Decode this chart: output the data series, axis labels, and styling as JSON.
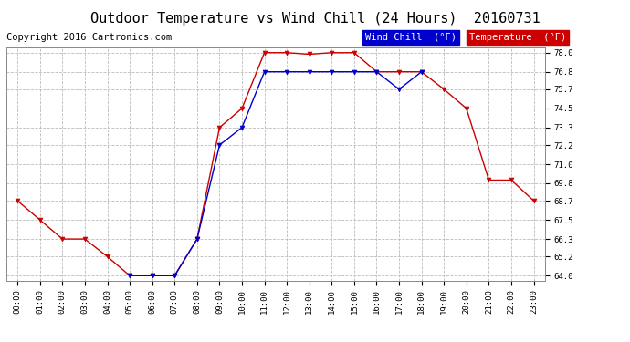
{
  "title": "Outdoor Temperature vs Wind Chill (24 Hours)  20160731",
  "copyright": "Copyright 2016 Cartronics.com",
  "legend_wind_chill": "Wind Chill  (°F)",
  "legend_temperature": "Temperature  (°F)",
  "hours": [
    "00:00",
    "01:00",
    "02:00",
    "03:00",
    "04:00",
    "05:00",
    "06:00",
    "07:00",
    "08:00",
    "09:00",
    "10:00",
    "11:00",
    "12:00",
    "13:00",
    "14:00",
    "15:00",
    "16:00",
    "17:00",
    "18:00",
    "19:00",
    "20:00",
    "21:00",
    "22:00",
    "23:00"
  ],
  "temperature": [
    68.7,
    67.5,
    66.3,
    66.3,
    65.2,
    64.0,
    64.0,
    64.0,
    66.3,
    73.3,
    74.5,
    78.0,
    78.0,
    77.9,
    78.0,
    78.0,
    76.8,
    76.8,
    76.8,
    75.7,
    74.5,
    70.0,
    70.0,
    68.7
  ],
  "wind_chill": [
    null,
    null,
    null,
    null,
    null,
    64.0,
    64.0,
    64.0,
    66.3,
    72.2,
    73.3,
    76.8,
    76.8,
    76.8,
    76.8,
    76.8,
    76.8,
    75.7,
    76.8,
    null,
    null,
    null,
    null,
    null
  ],
  "ylim_min": 64.0,
  "ylim_max": 78.0,
  "yticks": [
    64.0,
    65.2,
    66.3,
    67.5,
    68.7,
    69.8,
    71.0,
    72.2,
    73.3,
    74.5,
    75.7,
    76.8,
    78.0
  ],
  "temp_color": "#cc0000",
  "wind_color": "#0000cc",
  "bg_color": "#ffffff",
  "grid_color": "#bbbbbb",
  "title_fontsize": 11,
  "legend_fontsize": 7.5,
  "copyright_fontsize": 7.5
}
